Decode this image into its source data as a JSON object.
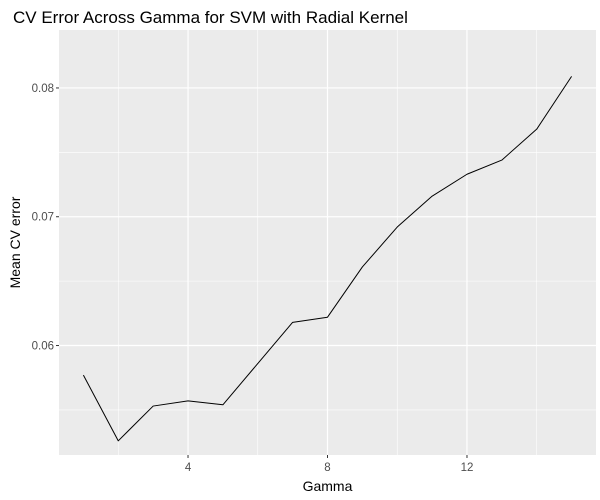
{
  "chart_data": {
    "type": "line",
    "title": "CV Error Across Gamma for SVM with Radial Kernel",
    "xlabel": "Gamma",
    "ylabel": "Mean CV error",
    "xlim": [
      0.3,
      15.7
    ],
    "ylim": [
      0.0515,
      0.0845
    ],
    "x_ticks": [
      4,
      8,
      12
    ],
    "x_tick_labels": [
      "4",
      "8",
      "12"
    ],
    "x_minor_ticks": [
      2,
      6,
      10,
      14
    ],
    "y_ticks": [
      0.06,
      0.07,
      0.08
    ],
    "y_tick_labels": [
      "0.06",
      "0.07",
      "0.08"
    ],
    "y_minor_ticks": [
      0.055,
      0.065,
      0.075
    ],
    "grid": true,
    "legend": "none",
    "series": [
      {
        "x": [
          1,
          2,
          3,
          4,
          5,
          6,
          7,
          8,
          9,
          10,
          11,
          12,
          13,
          14,
          15
        ],
        "values": [
          0.0577,
          0.0526,
          0.0553,
          0.0557,
          0.0554,
          0.0586,
          0.0618,
          0.0622,
          0.0661,
          0.0692,
          0.0716,
          0.0733,
          0.0744,
          0.0768,
          0.0809
        ]
      }
    ],
    "colors": {
      "panel": "#ebebeb",
      "grid": "#ffffff",
      "line": "#000000",
      "tick_text": "#4d4d4d",
      "tick_mark": "#333333"
    }
  }
}
